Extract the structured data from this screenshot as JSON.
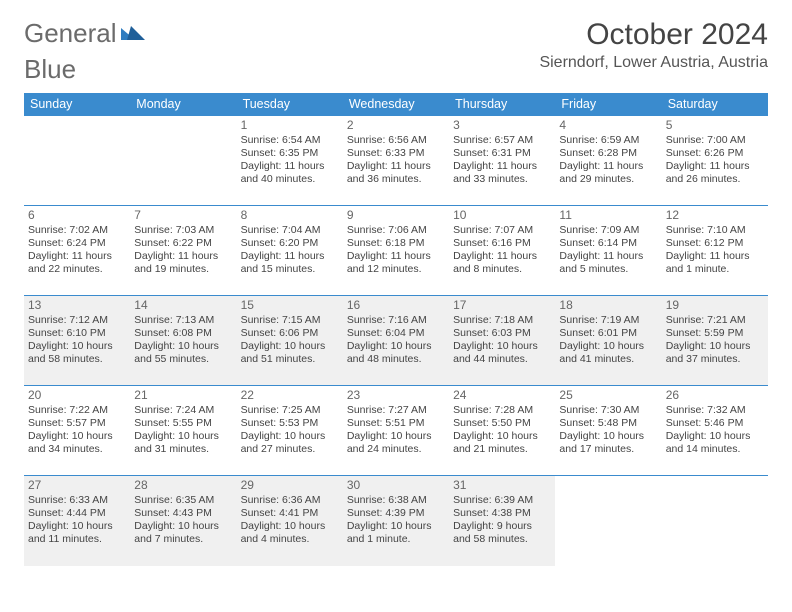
{
  "brand": {
    "text1": "General",
    "text2": "Blue"
  },
  "title": "October 2024",
  "location": "Sierndorf, Lower Austria, Austria",
  "colors": {
    "header_bg": "#3a8bce",
    "header_text": "#ffffff",
    "border": "#3a8bce",
    "shaded_row": "#f0f0f0",
    "logo_gray": "#6b6b6b",
    "logo_blue": "#2e7cc0"
  },
  "day_headers": [
    "Sunday",
    "Monday",
    "Tuesday",
    "Wednesday",
    "Thursday",
    "Friday",
    "Saturday"
  ],
  "weeks": [
    {
      "shaded": false,
      "cells": [
        {
          "empty": true
        },
        {
          "empty": true
        },
        {
          "day": "1",
          "sunrise": "Sunrise: 6:54 AM",
          "sunset": "Sunset: 6:35 PM",
          "daylight": "Daylight: 11 hours and 40 minutes."
        },
        {
          "day": "2",
          "sunrise": "Sunrise: 6:56 AM",
          "sunset": "Sunset: 6:33 PM",
          "daylight": "Daylight: 11 hours and 36 minutes."
        },
        {
          "day": "3",
          "sunrise": "Sunrise: 6:57 AM",
          "sunset": "Sunset: 6:31 PM",
          "daylight": "Daylight: 11 hours and 33 minutes."
        },
        {
          "day": "4",
          "sunrise": "Sunrise: 6:59 AM",
          "sunset": "Sunset: 6:28 PM",
          "daylight": "Daylight: 11 hours and 29 minutes."
        },
        {
          "day": "5",
          "sunrise": "Sunrise: 7:00 AM",
          "sunset": "Sunset: 6:26 PM",
          "daylight": "Daylight: 11 hours and 26 minutes."
        }
      ]
    },
    {
      "shaded": false,
      "cells": [
        {
          "day": "6",
          "sunrise": "Sunrise: 7:02 AM",
          "sunset": "Sunset: 6:24 PM",
          "daylight": "Daylight: 11 hours and 22 minutes."
        },
        {
          "day": "7",
          "sunrise": "Sunrise: 7:03 AM",
          "sunset": "Sunset: 6:22 PM",
          "daylight": "Daylight: 11 hours and 19 minutes."
        },
        {
          "day": "8",
          "sunrise": "Sunrise: 7:04 AM",
          "sunset": "Sunset: 6:20 PM",
          "daylight": "Daylight: 11 hours and 15 minutes."
        },
        {
          "day": "9",
          "sunrise": "Sunrise: 7:06 AM",
          "sunset": "Sunset: 6:18 PM",
          "daylight": "Daylight: 11 hours and 12 minutes."
        },
        {
          "day": "10",
          "sunrise": "Sunrise: 7:07 AM",
          "sunset": "Sunset: 6:16 PM",
          "daylight": "Daylight: 11 hours and 8 minutes."
        },
        {
          "day": "11",
          "sunrise": "Sunrise: 7:09 AM",
          "sunset": "Sunset: 6:14 PM",
          "daylight": "Daylight: 11 hours and 5 minutes."
        },
        {
          "day": "12",
          "sunrise": "Sunrise: 7:10 AM",
          "sunset": "Sunset: 6:12 PM",
          "daylight": "Daylight: 11 hours and 1 minute."
        }
      ]
    },
    {
      "shaded": true,
      "cells": [
        {
          "day": "13",
          "sunrise": "Sunrise: 7:12 AM",
          "sunset": "Sunset: 6:10 PM",
          "daylight": "Daylight: 10 hours and 58 minutes."
        },
        {
          "day": "14",
          "sunrise": "Sunrise: 7:13 AM",
          "sunset": "Sunset: 6:08 PM",
          "daylight": "Daylight: 10 hours and 55 minutes."
        },
        {
          "day": "15",
          "sunrise": "Sunrise: 7:15 AM",
          "sunset": "Sunset: 6:06 PM",
          "daylight": "Daylight: 10 hours and 51 minutes."
        },
        {
          "day": "16",
          "sunrise": "Sunrise: 7:16 AM",
          "sunset": "Sunset: 6:04 PM",
          "daylight": "Daylight: 10 hours and 48 minutes."
        },
        {
          "day": "17",
          "sunrise": "Sunrise: 7:18 AM",
          "sunset": "Sunset: 6:03 PM",
          "daylight": "Daylight: 10 hours and 44 minutes."
        },
        {
          "day": "18",
          "sunrise": "Sunrise: 7:19 AM",
          "sunset": "Sunset: 6:01 PM",
          "daylight": "Daylight: 10 hours and 41 minutes."
        },
        {
          "day": "19",
          "sunrise": "Sunrise: 7:21 AM",
          "sunset": "Sunset: 5:59 PM",
          "daylight": "Daylight: 10 hours and 37 minutes."
        }
      ]
    },
    {
      "shaded": false,
      "cells": [
        {
          "day": "20",
          "sunrise": "Sunrise: 7:22 AM",
          "sunset": "Sunset: 5:57 PM",
          "daylight": "Daylight: 10 hours and 34 minutes."
        },
        {
          "day": "21",
          "sunrise": "Sunrise: 7:24 AM",
          "sunset": "Sunset: 5:55 PM",
          "daylight": "Daylight: 10 hours and 31 minutes."
        },
        {
          "day": "22",
          "sunrise": "Sunrise: 7:25 AM",
          "sunset": "Sunset: 5:53 PM",
          "daylight": "Daylight: 10 hours and 27 minutes."
        },
        {
          "day": "23",
          "sunrise": "Sunrise: 7:27 AM",
          "sunset": "Sunset: 5:51 PM",
          "daylight": "Daylight: 10 hours and 24 minutes."
        },
        {
          "day": "24",
          "sunrise": "Sunrise: 7:28 AM",
          "sunset": "Sunset: 5:50 PM",
          "daylight": "Daylight: 10 hours and 21 minutes."
        },
        {
          "day": "25",
          "sunrise": "Sunrise: 7:30 AM",
          "sunset": "Sunset: 5:48 PM",
          "daylight": "Daylight: 10 hours and 17 minutes."
        },
        {
          "day": "26",
          "sunrise": "Sunrise: 7:32 AM",
          "sunset": "Sunset: 5:46 PM",
          "daylight": "Daylight: 10 hours and 14 minutes."
        }
      ]
    },
    {
      "shaded": true,
      "cells": [
        {
          "day": "27",
          "sunrise": "Sunrise: 6:33 AM",
          "sunset": "Sunset: 4:44 PM",
          "daylight": "Daylight: 10 hours and 11 minutes."
        },
        {
          "day": "28",
          "sunrise": "Sunrise: 6:35 AM",
          "sunset": "Sunset: 4:43 PM",
          "daylight": "Daylight: 10 hours and 7 minutes."
        },
        {
          "day": "29",
          "sunrise": "Sunrise: 6:36 AM",
          "sunset": "Sunset: 4:41 PM",
          "daylight": "Daylight: 10 hours and 4 minutes."
        },
        {
          "day": "30",
          "sunrise": "Sunrise: 6:38 AM",
          "sunset": "Sunset: 4:39 PM",
          "daylight": "Daylight: 10 hours and 1 minute."
        },
        {
          "day": "31",
          "sunrise": "Sunrise: 6:39 AM",
          "sunset": "Sunset: 4:38 PM",
          "daylight": "Daylight: 9 hours and 58 minutes."
        },
        {
          "empty": true
        },
        {
          "empty": true
        }
      ]
    }
  ]
}
